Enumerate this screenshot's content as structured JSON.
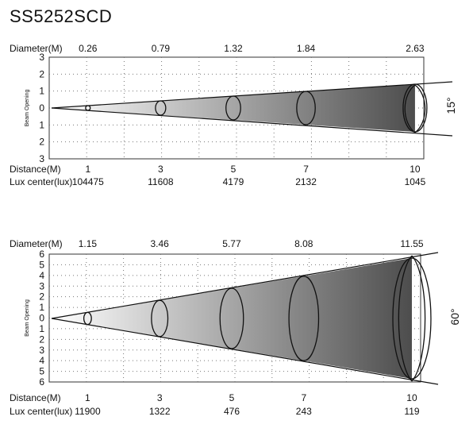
{
  "model": "SS5252SCD",
  "beam_opening_label": "Beam Opening",
  "diagrams": [
    {
      "beam_angle": "15°",
      "diameter_label": "Diameter(M)",
      "distance_label": "Distance(M)",
      "lux_label": "Lux center(lux)",
      "y_ticks": [
        "3",
        "2",
        "1",
        "0",
        "1",
        "2",
        "3"
      ],
      "points": [
        {
          "distance": "1",
          "diameter": "0.26",
          "lux": "104475"
        },
        {
          "distance": "3",
          "diameter": "0.79",
          "lux": "11608"
        },
        {
          "distance": "5",
          "diameter": "1.32",
          "lux": "4179"
        },
        {
          "distance": "7",
          "diameter": "1.84",
          "lux": "2132"
        },
        {
          "distance": "10",
          "diameter": "2.63",
          "lux": "1045"
        }
      ]
    },
    {
      "beam_angle": "60°",
      "diameter_label": "Diameter(M)",
      "distance_label": "Distance(M)",
      "lux_label": "Lux center(lux)",
      "y_ticks": [
        "6",
        "5",
        "4",
        "3",
        "2",
        "1",
        "0",
        "1",
        "2",
        "3",
        "4",
        "5",
        "6"
      ],
      "points": [
        {
          "distance": "1",
          "diameter": "1.15",
          "lux": "11900"
        },
        {
          "distance": "3",
          "diameter": "3.46",
          "lux": "1322"
        },
        {
          "distance": "5",
          "diameter": "5.77",
          "lux": "476"
        },
        {
          "distance": "7",
          "diameter": "8.08",
          "lux": "243"
        },
        {
          "distance": "10",
          "diameter": "11.55",
          "lux": "119"
        }
      ]
    }
  ]
}
